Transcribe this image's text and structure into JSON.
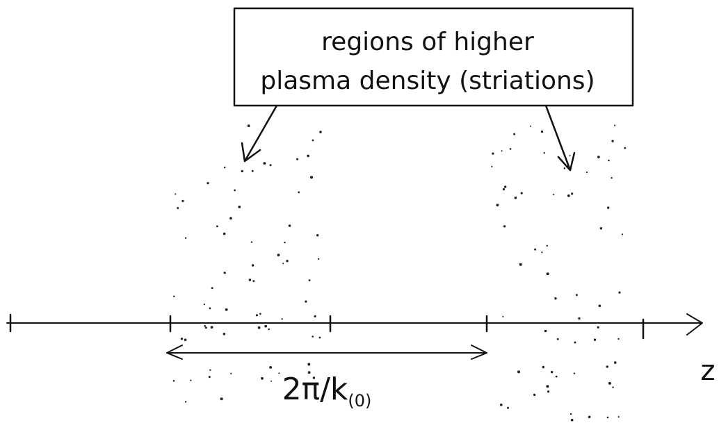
{
  "box": {
    "lines": [
      "regions of higher",
      "plasma density (striations)"
    ]
  },
  "axis": {
    "label": "z"
  },
  "span": {
    "label": "2π/k",
    "subscript": "(0)"
  }
}
